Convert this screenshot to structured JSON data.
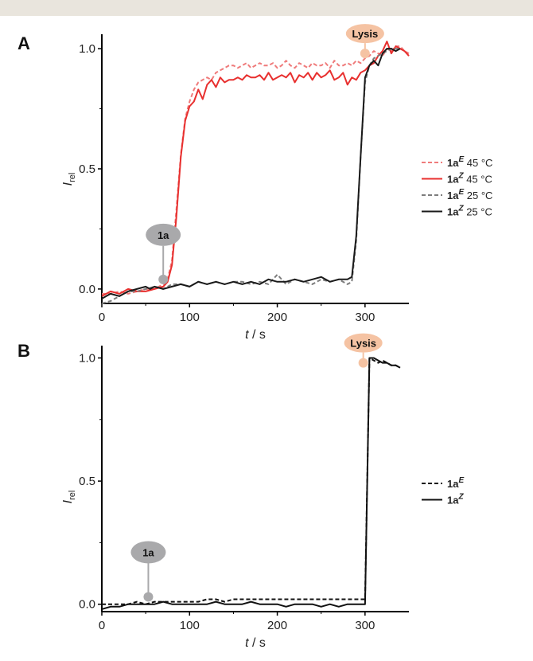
{
  "chart_data": [
    {
      "type": "line",
      "panel_label": "A",
      "xlabel": {
        "italic": "t",
        "unit": " / s"
      },
      "ylabel": {
        "main": "I",
        "sub": "rel"
      },
      "xlim": [
        0,
        350
      ],
      "ylim": [
        -0.06,
        1.06
      ],
      "xticks": [
        0,
        100,
        200,
        300
      ],
      "yticks": [
        0.0,
        0.5,
        1.0
      ],
      "tick_labels_x": [
        "0",
        "100",
        "200",
        "300"
      ],
      "tick_labels_y": [
        "0.0",
        "0.5",
        "1.0"
      ],
      "grid": false,
      "legend_position": "right",
      "annotations": [
        {
          "text": "1a",
          "x": 70,
          "y": 0.04,
          "color": "#a9a9ab"
        },
        {
          "text": "Lysis",
          "x": 300,
          "y": 0.98,
          "color": "#f5c3a3"
        }
      ],
      "series": [
        {
          "name": "1a",
          "sup": "E",
          "suffix": " 45 °C",
          "color": "#ef7b7b",
          "dash": "5,3",
          "width": 2,
          "x": [
            0,
            10,
            20,
            30,
            40,
            50,
            60,
            70,
            75,
            80,
            85,
            90,
            95,
            100,
            105,
            110,
            115,
            120,
            125,
            130,
            135,
            140,
            145,
            150,
            155,
            160,
            165,
            170,
            175,
            180,
            185,
            190,
            195,
            200,
            205,
            210,
            215,
            220,
            225,
            230,
            235,
            240,
            245,
            250,
            255,
            260,
            265,
            270,
            275,
            280,
            285,
            290,
            295,
            300,
            305,
            310,
            315,
            320,
            325,
            330,
            335,
            340,
            345,
            350
          ],
          "y": [
            -0.02,
            -0.02,
            -0.01,
            -0.02,
            -0.01,
            0.0,
            0.0,
            0.02,
            0.04,
            0.12,
            0.33,
            0.56,
            0.71,
            0.78,
            0.83,
            0.86,
            0.87,
            0.88,
            0.87,
            0.9,
            0.91,
            0.92,
            0.93,
            0.93,
            0.92,
            0.93,
            0.94,
            0.92,
            0.93,
            0.94,
            0.93,
            0.93,
            0.94,
            0.92,
            0.93,
            0.95,
            0.93,
            0.92,
            0.94,
            0.93,
            0.92,
            0.94,
            0.93,
            0.93,
            0.94,
            0.92,
            0.95,
            0.93,
            0.93,
            0.94,
            0.93,
            0.95,
            0.94,
            0.96,
            0.97,
            0.99,
            0.98,
            0.97,
            1.0,
            0.99,
            1.01,
            1.01,
            0.99,
            0.98
          ]
        },
        {
          "name": "1a",
          "sup": "Z",
          "suffix": " 45 °C",
          "color": "#e8302f",
          "dash": "",
          "width": 2,
          "x": [
            0,
            10,
            20,
            30,
            40,
            50,
            60,
            70,
            75,
            80,
            85,
            90,
            95,
            100,
            105,
            110,
            115,
            120,
            125,
            130,
            135,
            140,
            145,
            150,
            155,
            160,
            165,
            170,
            175,
            180,
            185,
            190,
            195,
            200,
            205,
            210,
            215,
            220,
            225,
            230,
            235,
            240,
            245,
            250,
            255,
            260,
            265,
            270,
            275,
            280,
            285,
            290,
            295,
            300,
            305,
            310,
            315,
            320,
            325,
            330,
            335,
            340,
            345,
            350
          ],
          "y": [
            -0.03,
            -0.01,
            -0.02,
            0.0,
            -0.01,
            -0.01,
            0.0,
            0.01,
            0.03,
            0.1,
            0.3,
            0.55,
            0.7,
            0.76,
            0.78,
            0.83,
            0.79,
            0.85,
            0.87,
            0.84,
            0.88,
            0.86,
            0.87,
            0.87,
            0.88,
            0.87,
            0.89,
            0.88,
            0.88,
            0.89,
            0.87,
            0.9,
            0.87,
            0.88,
            0.89,
            0.88,
            0.9,
            0.86,
            0.89,
            0.88,
            0.9,
            0.87,
            0.9,
            0.88,
            0.89,
            0.91,
            0.87,
            0.88,
            0.9,
            0.85,
            0.88,
            0.87,
            0.9,
            0.91,
            0.93,
            0.94,
            0.97,
            0.99,
            1.03,
            0.98,
            1.01,
            1.0,
            0.99,
            0.97
          ]
        },
        {
          "name": "1a",
          "sup": "E",
          "suffix": " 25 °C",
          "color": "#7d7d7d",
          "dash": "5,3",
          "width": 2,
          "x": [
            0,
            10,
            20,
            30,
            40,
            50,
            60,
            70,
            80,
            90,
            100,
            110,
            120,
            130,
            140,
            150,
            160,
            170,
            180,
            190,
            200,
            210,
            220,
            230,
            240,
            250,
            260,
            270,
            280,
            285,
            290,
            295,
            300,
            305,
            310,
            320,
            330,
            340
          ],
          "y": [
            -0.06,
            -0.05,
            -0.03,
            -0.01,
            -0.01,
            0.0,
            0.01,
            0.0,
            0.02,
            0.02,
            0.01,
            0.03,
            0.02,
            0.03,
            0.02,
            0.03,
            0.03,
            0.02,
            0.03,
            0.02,
            0.06,
            0.02,
            0.04,
            0.03,
            0.02,
            0.04,
            0.03,
            0.04,
            0.02,
            0.03,
            0.2,
            0.55,
            0.86,
            0.93,
            0.96,
            0.98,
            1.0,
            1.0
          ]
        },
        {
          "name": "1a",
          "sup": "Z",
          "suffix": " 25 °C",
          "color": "#1a1a1a",
          "dash": "",
          "width": 2,
          "x": [
            0,
            5,
            10,
            20,
            30,
            40,
            50,
            55,
            60,
            70,
            80,
            90,
            100,
            110,
            120,
            130,
            140,
            150,
            160,
            170,
            180,
            190,
            200,
            210,
            220,
            230,
            240,
            250,
            260,
            270,
            280,
            285,
            290,
            295,
            300,
            305,
            310,
            315,
            320,
            325,
            330,
            335,
            340
          ],
          "y": [
            -0.04,
            -0.03,
            -0.02,
            -0.03,
            -0.01,
            0.0,
            0.01,
            0.0,
            0.01,
            0.0,
            0.01,
            0.02,
            0.01,
            0.03,
            0.02,
            0.03,
            0.02,
            0.03,
            0.02,
            0.03,
            0.02,
            0.04,
            0.03,
            0.03,
            0.04,
            0.03,
            0.04,
            0.05,
            0.03,
            0.04,
            0.04,
            0.05,
            0.22,
            0.55,
            0.88,
            0.93,
            0.95,
            0.93,
            0.98,
            1.0,
            1.0,
            0.99,
            1.0
          ]
        }
      ]
    },
    {
      "type": "line",
      "panel_label": "B",
      "xlabel": {
        "italic": "t",
        "unit": " / s"
      },
      "ylabel": {
        "main": "I",
        "sub": "rel"
      },
      "xlim": [
        0,
        350
      ],
      "ylim": [
        -0.03,
        1.05
      ],
      "xticks": [
        0,
        100,
        200,
        300
      ],
      "yticks": [
        0.0,
        0.5,
        1.0
      ],
      "tick_labels_x": [
        "0",
        "100",
        "200",
        "300"
      ],
      "tick_labels_y": [
        "0.0",
        "0.5",
        "1.0"
      ],
      "grid": false,
      "legend_position": "right",
      "annotations": [
        {
          "text": "1a",
          "x": 53,
          "y": 0.03,
          "color": "#a9a9ab"
        },
        {
          "text": "Lysis",
          "x": 298,
          "y": 0.98,
          "color": "#f5c3a3"
        }
      ],
      "series": [
        {
          "name": "1a",
          "sup": "E",
          "suffix": "",
          "color": "#111111",
          "dash": "5,3",
          "width": 2,
          "x": [
            0,
            10,
            20,
            30,
            40,
            50,
            60,
            70,
            80,
            90,
            100,
            110,
            120,
            130,
            140,
            150,
            160,
            170,
            180,
            190,
            200,
            210,
            220,
            230,
            240,
            250,
            260,
            270,
            280,
            290,
            295,
            300,
            305,
            310,
            315,
            320,
            325,
            330,
            335,
            340
          ],
          "y": [
            0.0,
            0.0,
            0.0,
            0.0,
            0.01,
            0.0,
            0.01,
            0.01,
            0.01,
            0.01,
            0.01,
            0.01,
            0.02,
            0.02,
            0.01,
            0.02,
            0.02,
            0.02,
            0.02,
            0.02,
            0.02,
            0.02,
            0.02,
            0.02,
            0.02,
            0.02,
            0.02,
            0.02,
            0.02,
            0.02,
            0.02,
            0.02,
            1.0,
            0.99,
            0.98,
            0.99,
            0.98,
            0.97,
            0.97,
            0.96
          ]
        },
        {
          "name": "1a",
          "sup": "Z",
          "suffix": "",
          "color": "#111111",
          "dash": "",
          "width": 2,
          "x": [
            0,
            10,
            20,
            30,
            40,
            50,
            60,
            70,
            80,
            90,
            100,
            110,
            120,
            130,
            140,
            150,
            160,
            170,
            180,
            190,
            200,
            210,
            220,
            230,
            240,
            250,
            260,
            270,
            280,
            290,
            295,
            300,
            305,
            310,
            315,
            320,
            325,
            330,
            335,
            340
          ],
          "y": [
            -0.02,
            -0.01,
            -0.01,
            0.0,
            0.0,
            0.0,
            0.0,
            0.01,
            0.0,
            0.0,
            0.0,
            0.0,
            0.0,
            0.01,
            0.0,
            0.0,
            0.0,
            0.01,
            0.0,
            0.0,
            0.0,
            -0.01,
            0.0,
            0.0,
            0.0,
            -0.01,
            0.0,
            -0.01,
            0.0,
            0.0,
            0.0,
            0.0,
            1.0,
            1.0,
            0.99,
            0.98,
            0.98,
            0.97,
            0.97,
            0.96
          ]
        }
      ]
    }
  ]
}
